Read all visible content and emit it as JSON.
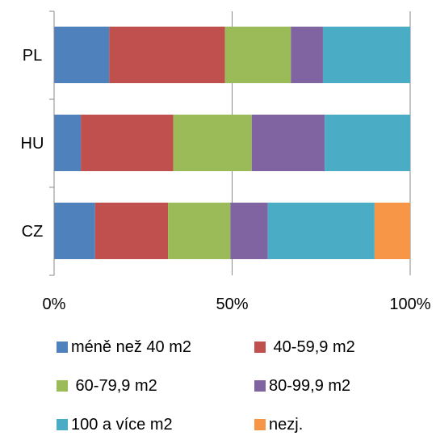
{
  "chart_data": {
    "type": "bar",
    "orientation": "horizontal",
    "stacked": true,
    "normalized": true,
    "categories": [
      "PL",
      "HU",
      "CZ"
    ],
    "series": [
      {
        "name": "méně než 40 m2",
        "color": "#4f81bd",
        "values": [
          15.5,
          7.5,
          11.5
        ]
      },
      {
        "name": " 40-59,9 m2",
        "color": "#c0504d",
        "values": [
          32.5,
          26,
          20.5
        ]
      },
      {
        "name": " 60-79,9 m2",
        "color": "#9bbb59",
        "values": [
          18.5,
          22,
          17.5
        ]
      },
      {
        "name": "80-99,9 m2",
        "color": "#8064a2",
        "values": [
          9,
          20.5,
          10.5
        ]
      },
      {
        "name": "100 a více m2",
        "color": "#4bacc6",
        "values": [
          24.5,
          24,
          30
        ]
      },
      {
        "name": "nezj.",
        "color": "#f79646",
        "values": [
          0,
          0,
          10
        ]
      }
    ],
    "x_ticks": [
      "0%",
      "50%",
      "100%"
    ],
    "xlim": [
      0,
      100
    ],
    "grid": "vertical at 50% and 100%",
    "legend_position": "bottom"
  }
}
